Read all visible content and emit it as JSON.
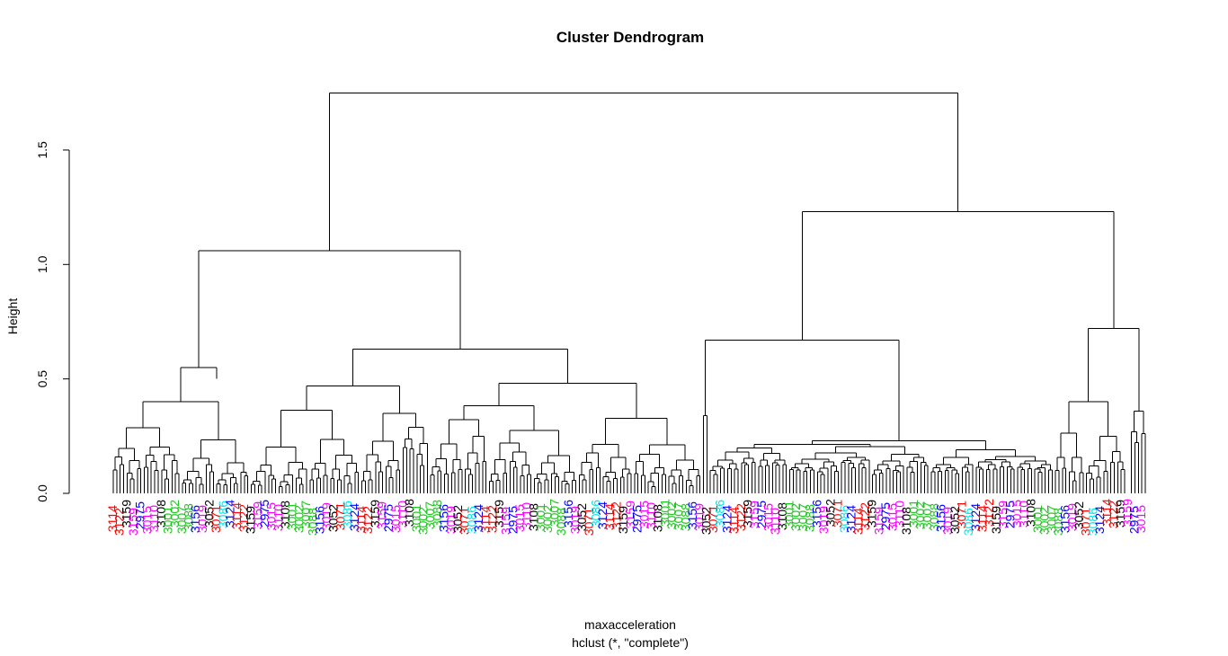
{
  "chart_data": {
    "type": "dendrogram",
    "title": "Cluster Dendrogram",
    "ylabel": "Height",
    "xlabel": "maxacceleration",
    "subtitle": "hclust (*, \"complete\")",
    "ylim": [
      0,
      1.8
    ],
    "yticks": [
      0.0,
      0.5,
      1.0,
      1.5
    ],
    "ytick_labels": [
      "0.0",
      "0.5",
      "1.0",
      "1.5"
    ],
    "label_colors": {
      "green": "#1fc71f",
      "black": "#000000",
      "red": "#ff0000",
      "magenta": "#ff00ff",
      "cyan": "#00e6e6",
      "blue": "#0000ff"
    },
    "merges": [
      {
        "id": "root",
        "height": 1.75
      },
      {
        "id": "left-main",
        "height": 1.06
      },
      {
        "id": "right-main",
        "height": 1.23
      },
      {
        "id": "left-green",
        "height": 0.55
      },
      {
        "id": "left-black-red",
        "height": 0.63
      },
      {
        "id": "right-flat",
        "height": 0.67
      },
      {
        "id": "right-far",
        "height": 0.72
      },
      {
        "id": "right-magenta",
        "height": 0.54
      },
      {
        "id": "black-sub",
        "height": 0.47
      },
      {
        "id": "red-sub",
        "height": 0.48
      },
      {
        "id": "flat-core",
        "height": 0.23
      },
      {
        "id": "purple-spike",
        "height": 0.34
      }
    ],
    "visible_leaf_labels": [
      {
        "text": "3114",
        "color": "red"
      },
      {
        "text": "3122",
        "color": "red"
      },
      {
        "text": "3159",
        "color": "black"
      },
      {
        "text": "3159",
        "color": "magenta"
      },
      {
        "text": "2975",
        "color": "blue"
      },
      {
        "text": "3015",
        "color": "magenta"
      },
      {
        "text": "3110",
        "color": "magenta"
      },
      {
        "text": "3108",
        "color": "black"
      },
      {
        "text": "3001",
        "color": "green"
      },
      {
        "text": "3002",
        "color": "green"
      },
      {
        "text": "3007",
        "color": "green"
      },
      {
        "text": "3088",
        "color": "green"
      },
      {
        "text": "3156",
        "color": "blue"
      },
      {
        "text": "3019",
        "color": "magenta"
      },
      {
        "text": "3052",
        "color": "black"
      },
      {
        "text": "3071",
        "color": "red"
      },
      {
        "text": "3086",
        "color": "cyan"
      },
      {
        "text": "3124",
        "color": "blue"
      }
    ]
  }
}
